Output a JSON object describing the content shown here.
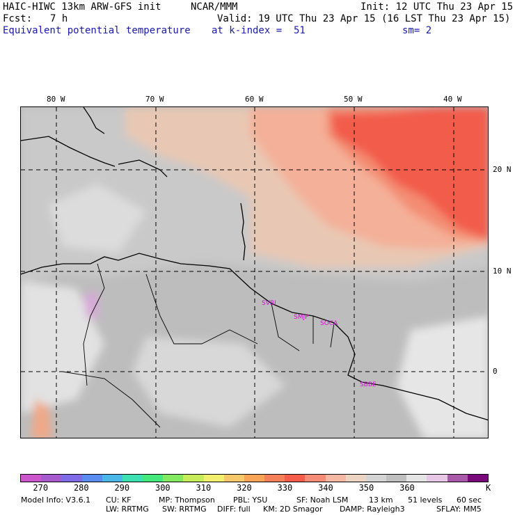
{
  "header": {
    "model": "HAIC-HIWC 13km ARW-GFS init",
    "org": "NCAR/MMM",
    "init": "Init: 12 UTC Thu 23 Apr 15",
    "fcst_label": "Fcst:",
    "fcst_value": "7 h",
    "valid": "Valid: 19 UTC Thu 23 Apr 15 (16 LST Thu 23 Apr 15)",
    "field": "Equivalent potential temperature",
    "level": "at k-index =  51",
    "smooth": "sm= 2"
  },
  "axes": {
    "lon_labels": [
      "80 W",
      "70 W",
      "60 W",
      "50 W",
      "40 W"
    ],
    "lat_labels": [
      "20 N",
      "10 N",
      "0"
    ]
  },
  "cities": [
    "SVBI",
    "SMJP",
    "SOCA",
    "SBBE"
  ],
  "colorbar": {
    "colors": [
      "#cc55cc",
      "#a55acd",
      "#7f6be6",
      "#5a8cf0",
      "#4bb6e8",
      "#3de0b0",
      "#45e87a",
      "#84e860",
      "#c6ec5a",
      "#f2ee6e",
      "#f6c86a",
      "#f7a456",
      "#f4805a",
      "#f55c4c",
      "#f58c78",
      "#f6b8a2",
      "#ecd4c2",
      "#d4d4d4",
      "#bfbfbf",
      "#e4e4e4",
      "#e6c8e6",
      "#a85aa8",
      "#7a0a7a"
    ],
    "ticks": [
      "270",
      "280",
      "290",
      "300",
      "310",
      "320",
      "330",
      "340",
      "350",
      "360"
    ],
    "unit": "K"
  },
  "footer": {
    "line1": [
      "Model Info: V3.6.1",
      "CU: KF",
      "MP: Thompson",
      "PBL: YSU",
      "SF: Noah LSM",
      "13 km",
      "51 levels",
      "60 sec"
    ],
    "line2": [
      "LW: RRTMG",
      "SW: RRTMG",
      "DIFF: full",
      "KM: 2D Smagor",
      "DAMP: Rayleigh3",
      "SFLAY: MM5"
    ]
  }
}
